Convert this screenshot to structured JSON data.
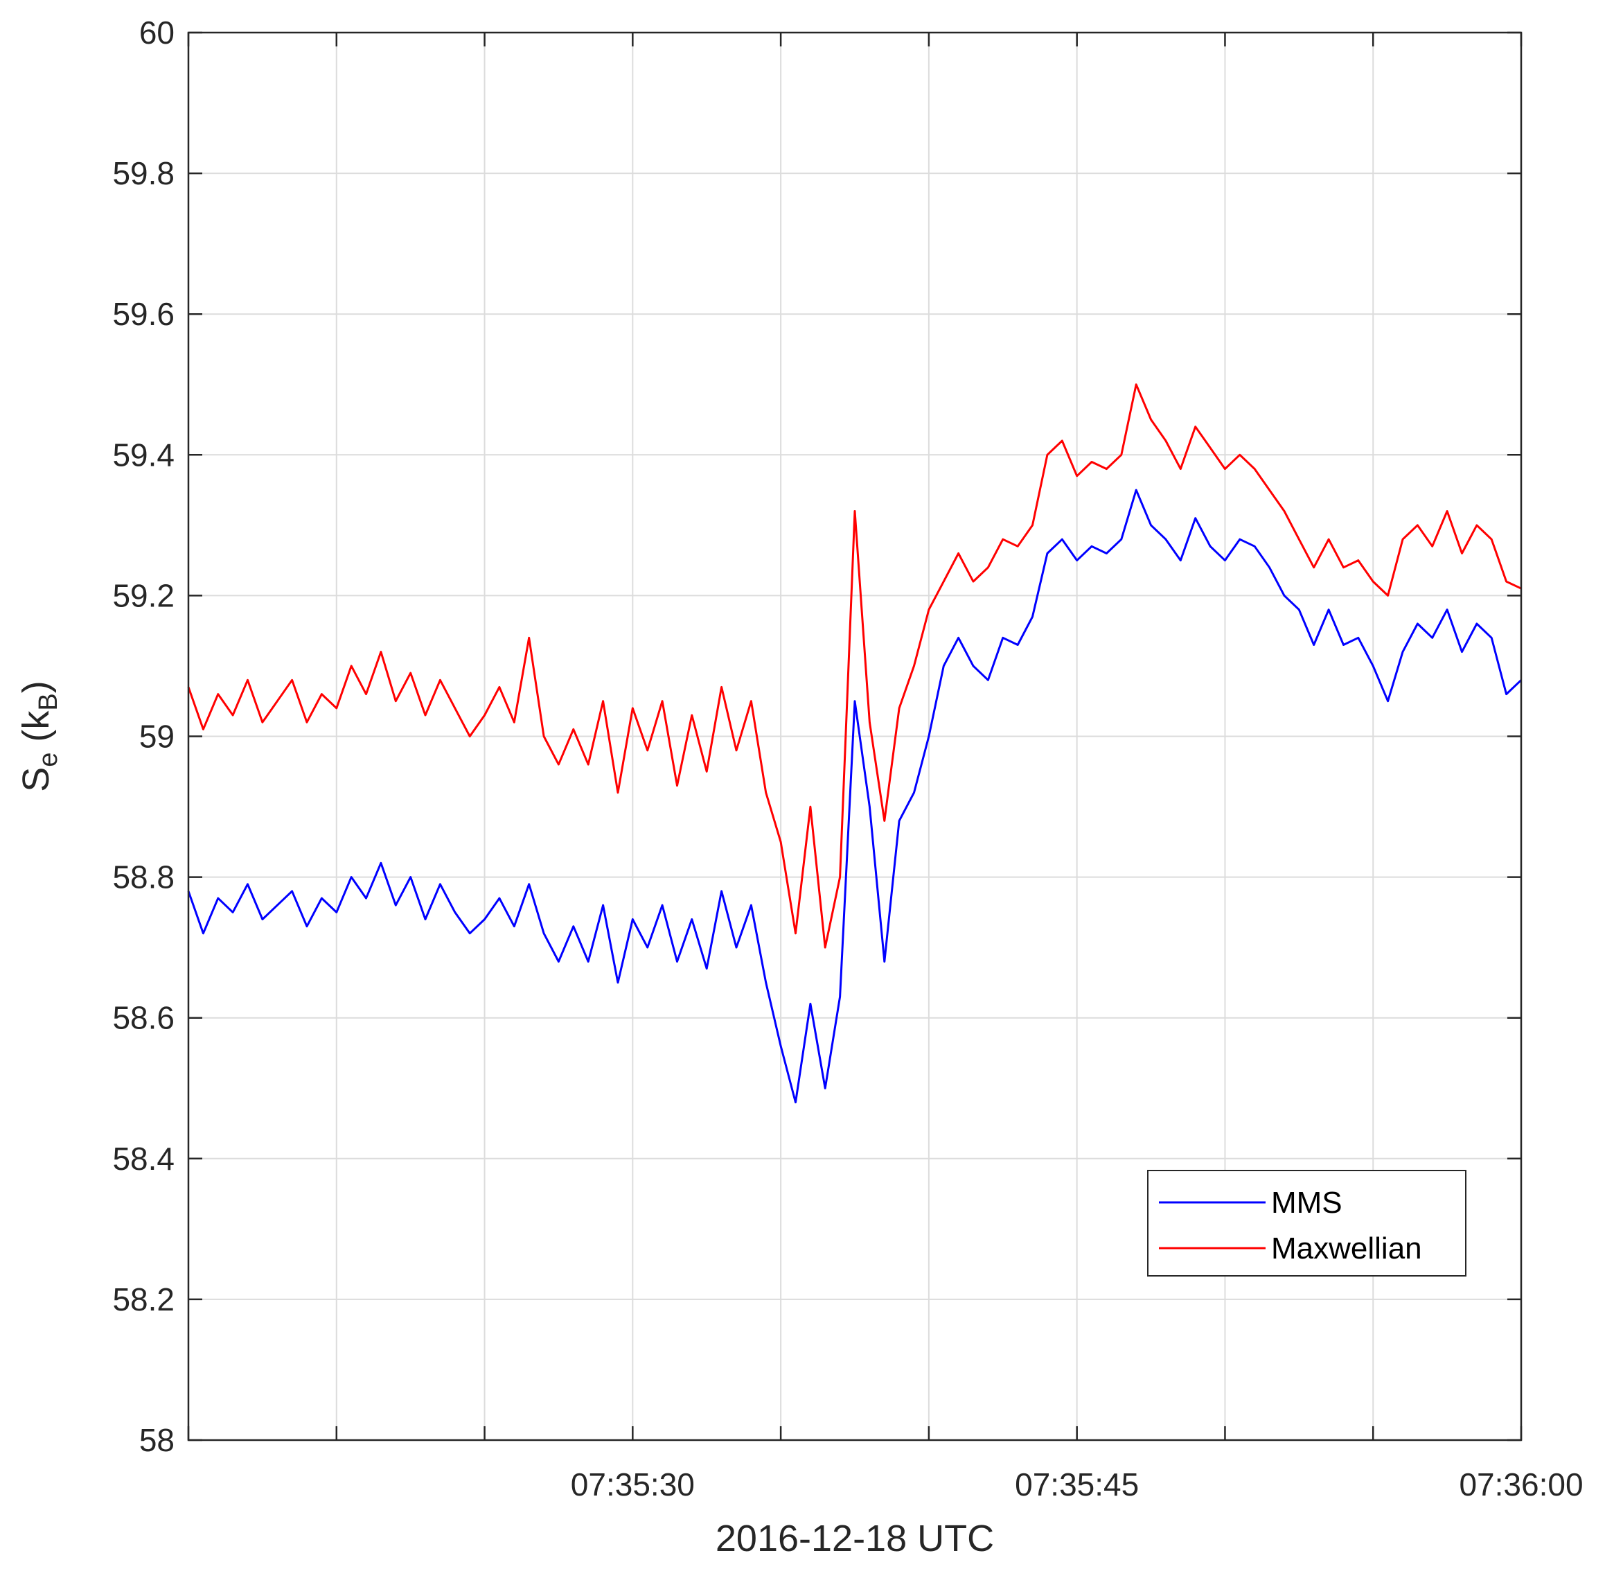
{
  "chart_data": {
    "type": "line",
    "xlabel": "2016-12-18 UTC",
    "ylabel": {
      "main": "S",
      "main_sub": "e",
      "unit": "k",
      "unit_sub": "B"
    },
    "xlim": [
      "07:35:15",
      "07:36:00"
    ],
    "ylim": [
      58,
      60
    ],
    "x_ticks": [
      "07:35:15",
      "07:35:20",
      "07:35:25",
      "07:35:30",
      "07:35:35",
      "07:35:40",
      "07:35:45",
      "07:35:50",
      "07:35:55",
      "07:36:00"
    ],
    "x_tick_labels": [
      {
        "time": "07:35:30",
        "label": "07:35:30"
      },
      {
        "time": "07:35:45",
        "label": "07:35:45"
      },
      {
        "time": "07:36:00",
        "label": "07:36:00"
      }
    ],
    "y_ticks": [
      {
        "value": 58,
        "label": "58"
      },
      {
        "value": 58.2,
        "label": "58.2"
      },
      {
        "value": 58.4,
        "label": "58.4"
      },
      {
        "value": 58.6,
        "label": "58.6"
      },
      {
        "value": 58.8,
        "label": "58.8"
      },
      {
        "value": 59,
        "label": "59"
      },
      {
        "value": 59.2,
        "label": "59.2"
      },
      {
        "value": 59.4,
        "label": "59.4"
      },
      {
        "value": 59.6,
        "label": "59.6"
      },
      {
        "value": 59.8,
        "label": "59.8"
      },
      {
        "value": 60,
        "label": "60"
      }
    ],
    "grid": true,
    "legend_position": "bottom-right",
    "series": [
      {
        "name": "MMS",
        "color": "#0000ff",
        "x": [
          "07:35:15.0",
          "07:35:15.5",
          "07:35:16.0",
          "07:35:16.5",
          "07:35:17.0",
          "07:35:17.5",
          "07:35:18.0",
          "07:35:18.5",
          "07:35:19.0",
          "07:35:19.5",
          "07:35:20.0",
          "07:35:20.5",
          "07:35:21.0",
          "07:35:21.5",
          "07:35:22.0",
          "07:35:22.5",
          "07:35:23.0",
          "07:35:23.5",
          "07:35:24.0",
          "07:35:24.5",
          "07:35:25.0",
          "07:35:25.5",
          "07:35:26.0",
          "07:35:26.5",
          "07:35:27.0",
          "07:35:27.5",
          "07:35:28.0",
          "07:35:28.5",
          "07:35:29.0",
          "07:35:29.5",
          "07:35:30.0",
          "07:35:30.5",
          "07:35:31.0",
          "07:35:31.5",
          "07:35:32.0",
          "07:35:32.5",
          "07:35:33.0",
          "07:35:33.5",
          "07:35:34.0",
          "07:35:34.5",
          "07:35:35.0",
          "07:35:35.5",
          "07:35:36.0",
          "07:35:36.5",
          "07:35:37.0",
          "07:35:37.5",
          "07:35:38.0",
          "07:35:38.5",
          "07:35:39.0",
          "07:35:39.5",
          "07:35:40.0",
          "07:35:40.5",
          "07:35:41.0",
          "07:35:41.5",
          "07:35:42.0",
          "07:35:42.5",
          "07:35:43.0",
          "07:35:43.5",
          "07:35:44.0",
          "07:35:44.5",
          "07:35:45.0",
          "07:35:45.5",
          "07:35:46.0",
          "07:35:46.5",
          "07:35:47.0",
          "07:35:47.5",
          "07:35:48.0",
          "07:35:48.5",
          "07:35:49.0",
          "07:35:49.5",
          "07:35:50.0",
          "07:35:50.5",
          "07:35:51.0",
          "07:35:51.5",
          "07:35:52.0",
          "07:35:52.5",
          "07:35:53.0",
          "07:35:53.5",
          "07:35:54.0",
          "07:35:54.5",
          "07:35:55.0",
          "07:35:55.5",
          "07:35:56.0",
          "07:35:56.5",
          "07:35:57.0",
          "07:35:57.5",
          "07:35:58.0",
          "07:35:58.5",
          "07:35:59.0",
          "07:35:59.5",
          "07:36:00.0"
        ],
        "y": [
          58.78,
          58.72,
          58.77,
          58.75,
          58.79,
          58.74,
          58.76,
          58.78,
          58.73,
          58.77,
          58.75,
          58.8,
          58.77,
          58.82,
          58.76,
          58.8,
          58.74,
          58.79,
          58.75,
          58.72,
          58.74,
          58.77,
          58.73,
          58.79,
          58.72,
          58.68,
          58.73,
          58.68,
          58.76,
          58.65,
          58.74,
          58.7,
          58.76,
          58.68,
          58.74,
          58.67,
          58.78,
          58.7,
          58.76,
          58.65,
          58.56,
          58.48,
          58.62,
          58.5,
          58.63,
          59.05,
          58.9,
          58.68,
          58.88,
          58.92,
          59.0,
          59.1,
          59.14,
          59.1,
          59.08,
          59.14,
          59.13,
          59.17,
          59.26,
          59.28,
          59.25,
          59.27,
          59.26,
          59.28,
          59.35,
          59.3,
          59.28,
          59.25,
          59.31,
          59.27,
          59.25,
          59.28,
          59.27,
          59.24,
          59.2,
          59.18,
          59.13,
          59.18,
          59.13,
          59.14,
          59.1,
          59.05,
          59.12,
          59.16,
          59.14,
          59.18,
          59.12,
          59.16,
          59.14,
          59.06,
          59.08
        ]
      },
      {
        "name": "Maxwellian",
        "color": "#ff0000",
        "x": [
          "07:35:15.0",
          "07:35:15.5",
          "07:35:16.0",
          "07:35:16.5",
          "07:35:17.0",
          "07:35:17.5",
          "07:35:18.0",
          "07:35:18.5",
          "07:35:19.0",
          "07:35:19.5",
          "07:35:20.0",
          "07:35:20.5",
          "07:35:21.0",
          "07:35:21.5",
          "07:35:22.0",
          "07:35:22.5",
          "07:35:23.0",
          "07:35:23.5",
          "07:35:24.0",
          "07:35:24.5",
          "07:35:25.0",
          "07:35:25.5",
          "07:35:26.0",
          "07:35:26.5",
          "07:35:27.0",
          "07:35:27.5",
          "07:35:28.0",
          "07:35:28.5",
          "07:35:29.0",
          "07:35:29.5",
          "07:35:30.0",
          "07:35:30.5",
          "07:35:31.0",
          "07:35:31.5",
          "07:35:32.0",
          "07:35:32.5",
          "07:35:33.0",
          "07:35:33.5",
          "07:35:34.0",
          "07:35:34.5",
          "07:35:35.0",
          "07:35:35.5",
          "07:35:36.0",
          "07:35:36.5",
          "07:35:37.0",
          "07:35:37.5",
          "07:35:38.0",
          "07:35:38.5",
          "07:35:39.0",
          "07:35:39.5",
          "07:35:40.0",
          "07:35:40.5",
          "07:35:41.0",
          "07:35:41.5",
          "07:35:42.0",
          "07:35:42.5",
          "07:35:43.0",
          "07:35:43.5",
          "07:35:44.0",
          "07:35:44.5",
          "07:35:45.0",
          "07:35:45.5",
          "07:35:46.0",
          "07:35:46.5",
          "07:35:47.0",
          "07:35:47.5",
          "07:35:48.0",
          "07:35:48.5",
          "07:35:49.0",
          "07:35:49.5",
          "07:35:50.0",
          "07:35:50.5",
          "07:35:51.0",
          "07:35:51.5",
          "07:35:52.0",
          "07:35:52.5",
          "07:35:53.0",
          "07:35:53.5",
          "07:35:54.0",
          "07:35:54.5",
          "07:35:55.0",
          "07:35:55.5",
          "07:35:56.0",
          "07:35:56.5",
          "07:35:57.0",
          "07:35:57.5",
          "07:35:58.0",
          "07:35:58.5",
          "07:35:59.0",
          "07:35:59.5",
          "07:36:00.0"
        ],
        "y": [
          59.07,
          59.01,
          59.06,
          59.03,
          59.08,
          59.02,
          59.05,
          59.08,
          59.02,
          59.06,
          59.04,
          59.1,
          59.06,
          59.12,
          59.05,
          59.09,
          59.03,
          59.08,
          59.04,
          59.0,
          59.03,
          59.07,
          59.02,
          59.14,
          59.0,
          58.96,
          59.01,
          58.96,
          59.05,
          58.92,
          59.04,
          58.98,
          59.05,
          58.93,
          59.03,
          58.95,
          59.07,
          58.98,
          59.05,
          58.92,
          58.85,
          58.72,
          58.9,
          58.7,
          58.8,
          59.32,
          59.02,
          58.88,
          59.04,
          59.1,
          59.18,
          59.22,
          59.26,
          59.22,
          59.24,
          59.28,
          59.27,
          59.3,
          59.4,
          59.42,
          59.37,
          59.39,
          59.38,
          59.4,
          59.5,
          59.45,
          59.42,
          59.38,
          59.44,
          59.41,
          59.38,
          59.4,
          59.38,
          59.35,
          59.32,
          59.28,
          59.24,
          59.28,
          59.24,
          59.25,
          59.22,
          59.2,
          59.28,
          59.3,
          59.27,
          59.32,
          59.26,
          59.3,
          59.28,
          59.22,
          59.21
        ]
      }
    ]
  }
}
